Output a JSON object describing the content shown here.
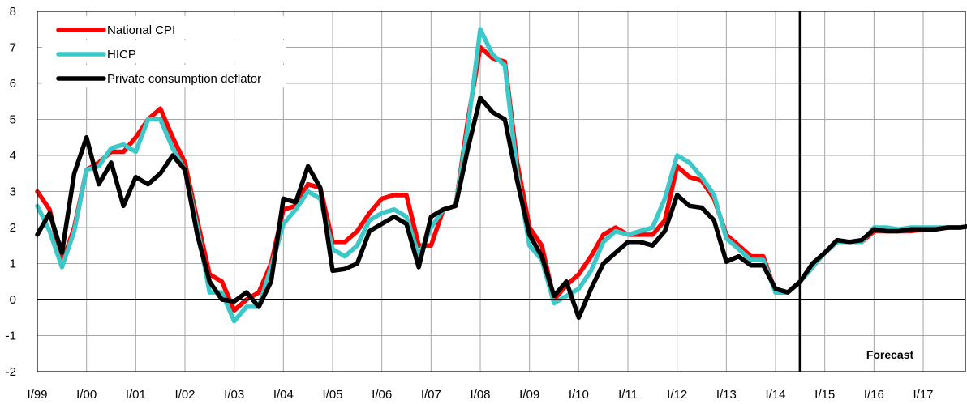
{
  "chart_data": {
    "type": "line",
    "x_start_year": 1999,
    "x_ticks": [
      "I/99",
      "I/00",
      "I/01",
      "I/02",
      "I/03",
      "I/04",
      "I/05",
      "I/06",
      "I/07",
      "I/08",
      "I/09",
      "I/10",
      "I/11",
      "I/12",
      "I/13",
      "I/14",
      "I/15",
      "I/16",
      "I/17"
    ],
    "y_ticks": [
      "8",
      "7",
      "6",
      "5",
      "4",
      "3",
      "2",
      "1",
      "0",
      "-1",
      "-2"
    ],
    "ylim": [
      -2,
      8
    ],
    "grid": true,
    "legend_position": "top-left",
    "forecast_marker_quarter_index": 62,
    "annotation": "Forecast",
    "colors": {
      "National CPI": "#ff0000",
      "HICP": "#3cc8c8",
      "Private consumption deflator": "#000000"
    },
    "series": [
      {
        "name": "National CPI",
        "values": [
          3.0,
          2.5,
          1.0,
          2.0,
          3.6,
          3.8,
          4.1,
          4.1,
          4.5,
          5.0,
          5.3,
          4.5,
          3.8,
          2.2,
          0.7,
          0.5,
          -0.3,
          0.0,
          0.2,
          1.0,
          2.5,
          2.6,
          3.2,
          3.1,
          1.6,
          1.6,
          1.9,
          2.4,
          2.8,
          2.9,
          2.9,
          1.5,
          1.5,
          2.5,
          2.6,
          5.0,
          7.0,
          6.7,
          6.6,
          3.8,
          2.0,
          1.5,
          0.0,
          0.4,
          0.7,
          1.2,
          1.8,
          2.0,
          1.8,
          1.8,
          1.8,
          2.2,
          3.7,
          3.4,
          3.3,
          2.8,
          1.8,
          1.5,
          1.2,
          1.2,
          0.2,
          0.2,
          0.5,
          0.9,
          1.3,
          1.6,
          1.6,
          1.6,
          1.9,
          1.9,
          1.9,
          1.9,
          1.95,
          1.95,
          2.0,
          2.0,
          2.05
        ]
      },
      {
        "name": "HICP",
        "values": [
          2.6,
          1.9,
          0.9,
          1.9,
          3.6,
          3.7,
          4.2,
          4.3,
          4.1,
          5.0,
          5.0,
          4.2,
          3.6,
          2.0,
          0.2,
          0.2,
          -0.6,
          -0.2,
          -0.2,
          0.9,
          2.1,
          2.5,
          3.0,
          2.8,
          1.4,
          1.2,
          1.5,
          2.2,
          2.4,
          2.5,
          2.3,
          1.2,
          2.0,
          2.5,
          2.6,
          4.8,
          7.5,
          6.8,
          6.5,
          3.5,
          1.5,
          1.1,
          -0.1,
          0.1,
          0.3,
          0.8,
          1.6,
          1.9,
          1.8,
          1.9,
          2.0,
          2.8,
          4.0,
          3.8,
          3.4,
          2.9,
          1.7,
          1.4,
          1.1,
          1.1,
          0.2,
          0.2,
          0.5,
          0.9,
          1.3,
          1.6,
          1.6,
          1.6,
          2.0,
          2.0,
          1.95,
          2.0,
          2.0,
          2.0,
          2.0,
          2.0,
          2.05
        ]
      },
      {
        "name": "Private consumption deflator",
        "values": [
          1.8,
          2.4,
          1.3,
          3.5,
          4.5,
          3.2,
          3.8,
          2.6,
          3.4,
          3.2,
          3.5,
          4.0,
          3.6,
          1.8,
          0.5,
          0.0,
          -0.05,
          0.2,
          -0.2,
          0.5,
          2.8,
          2.7,
          3.7,
          3.1,
          0.8,
          0.85,
          1.0,
          1.9,
          2.1,
          2.3,
          2.1,
          0.9,
          2.3,
          2.5,
          2.6,
          4.2,
          5.6,
          5.2,
          5.0,
          3.3,
          1.8,
          1.2,
          0.1,
          0.5,
          -0.5,
          0.3,
          1.0,
          1.3,
          1.6,
          1.6,
          1.5,
          1.9,
          2.9,
          2.6,
          2.55,
          2.2,
          1.05,
          1.2,
          0.95,
          0.95,
          0.3,
          0.2,
          0.5,
          1.0,
          1.3,
          1.65,
          1.6,
          1.65,
          1.95,
          1.9,
          1.9,
          1.95,
          1.95,
          1.95,
          2.0,
          2.0,
          2.05
        ]
      }
    ]
  }
}
